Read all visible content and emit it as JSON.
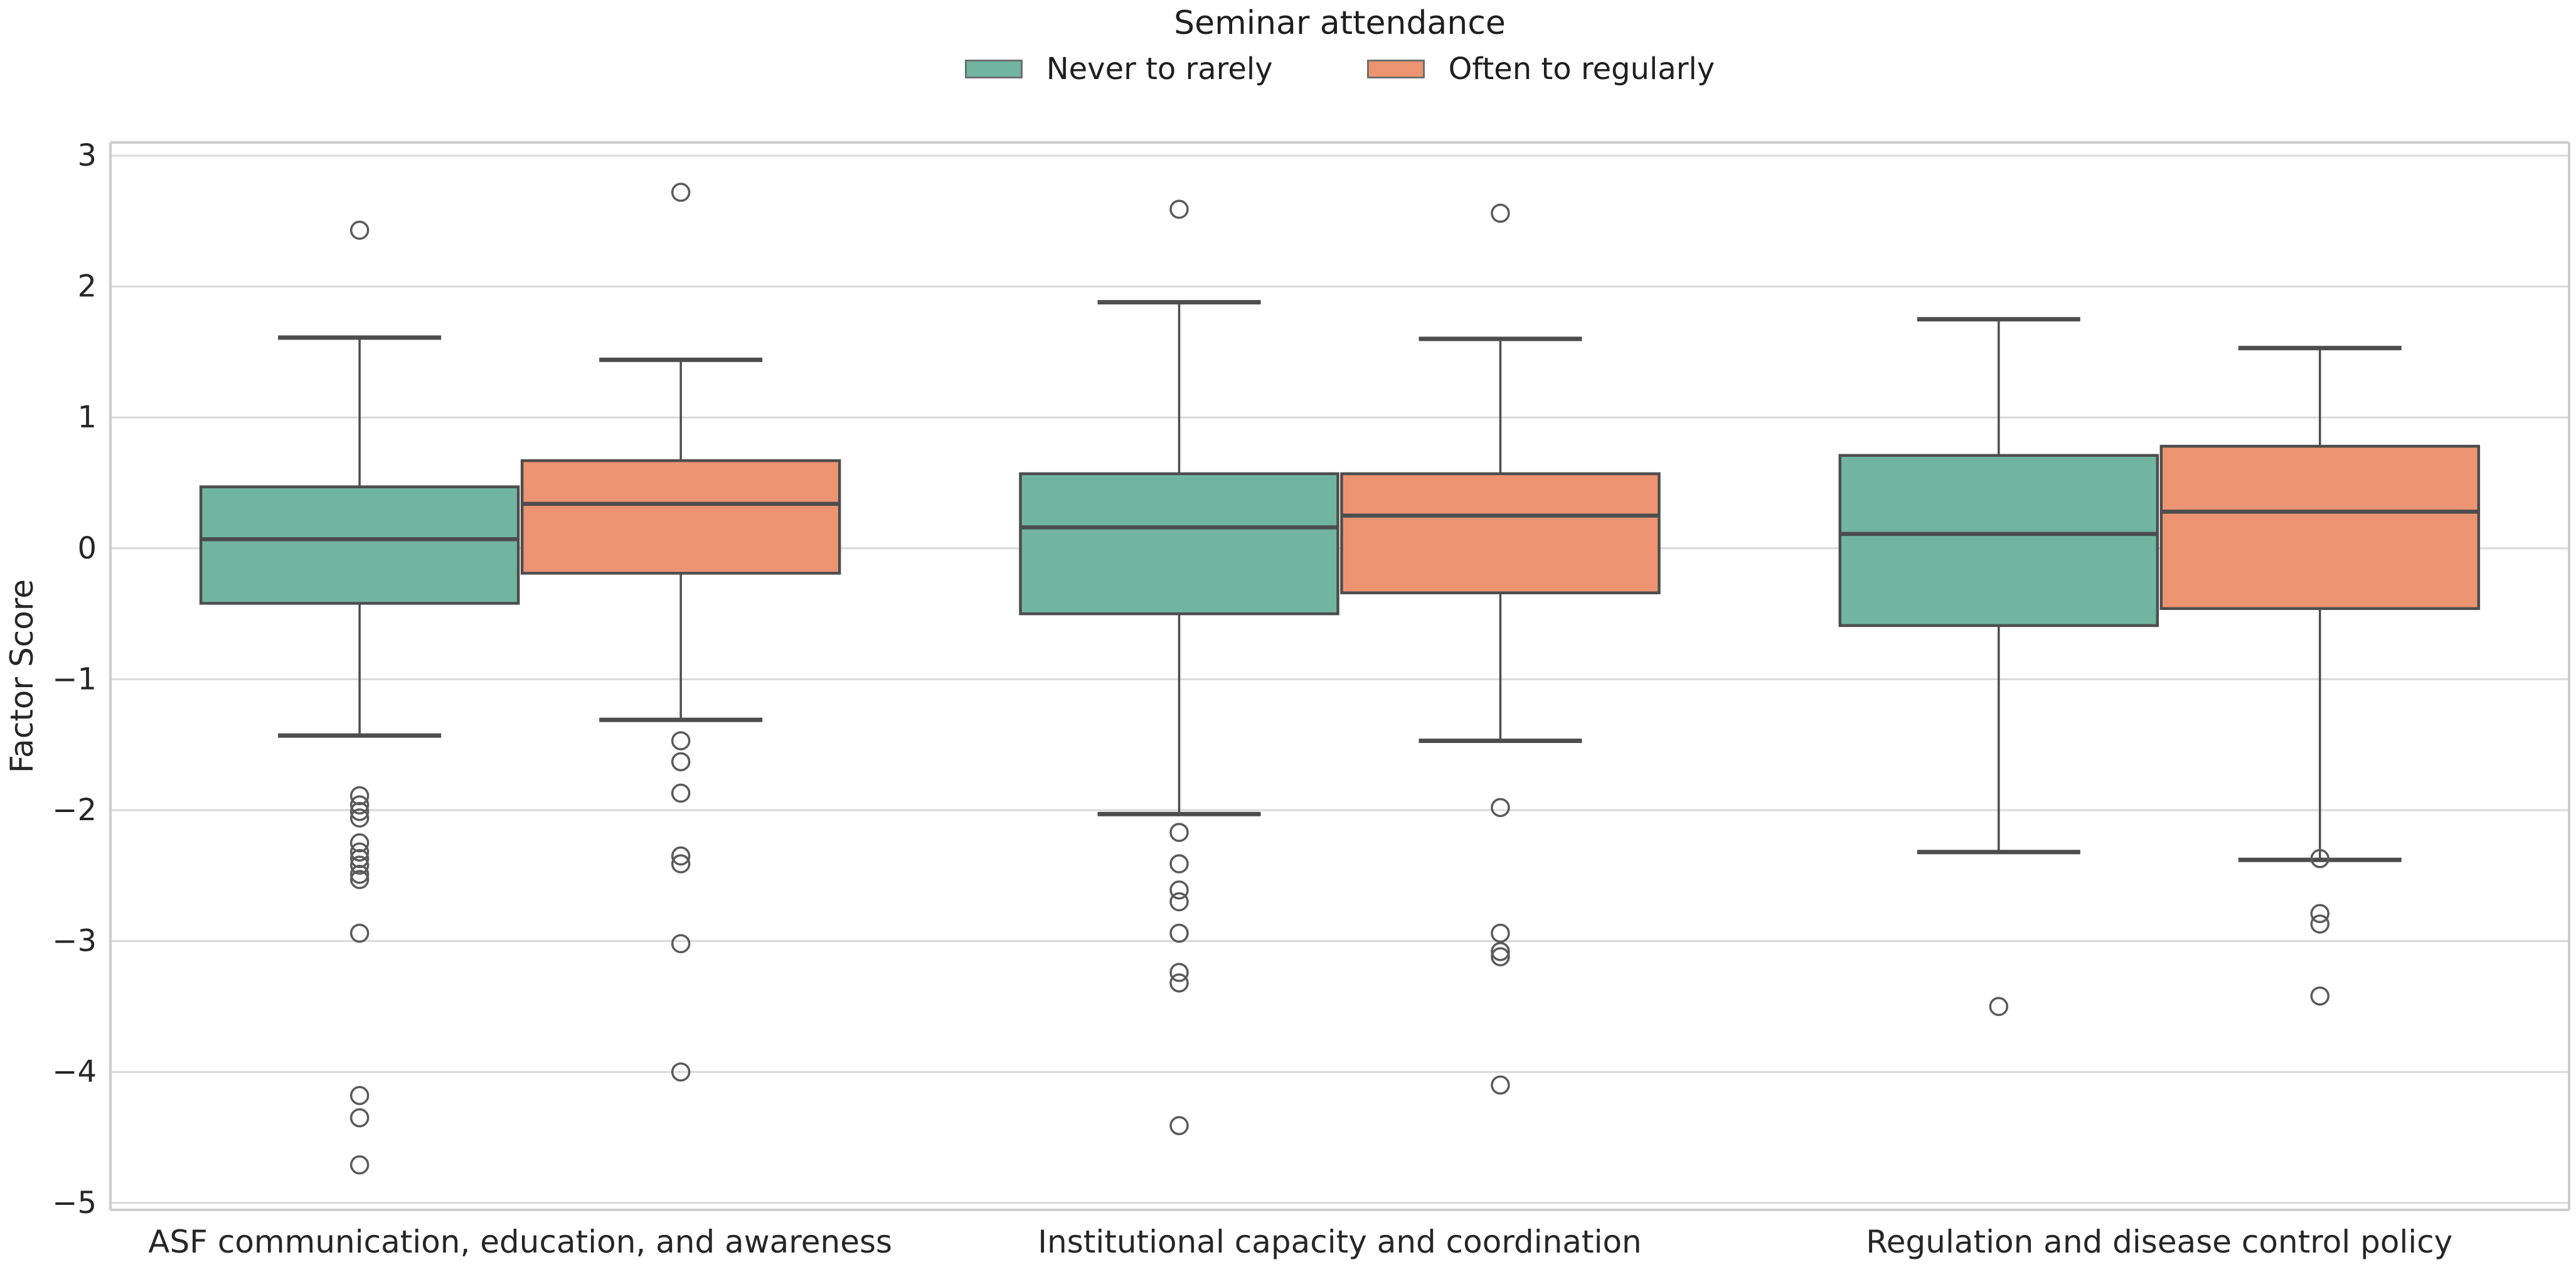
{
  "chart_data": {
    "type": "box",
    "legend_title": "Seminar attendance",
    "ylabel": "Factor Score",
    "xlabel": "",
    "yticks": [
      3,
      2,
      1,
      0,
      -1,
      -2,
      -3,
      -4,
      -5
    ],
    "ylim": [
      -5.06,
      3.1
    ],
    "grid": true,
    "legend_position": "top-center",
    "groups": [
      {
        "name": "Never to rarely",
        "color": "#71b5a1"
      },
      {
        "name": "Often to regularly",
        "color": "#ec9472"
      }
    ],
    "categories": [
      "ASF communication, education, and awareness",
      "Institutional capacity and coordination",
      "Regulation and disease control policy"
    ],
    "boxes": [
      {
        "category": 0,
        "group": 0,
        "whislo": -1.43,
        "q1": -0.42,
        "med": 0.07,
        "q3": 0.47,
        "whishi": 1.61,
        "outliers": [
          2.43,
          -1.89,
          -1.96,
          -2.01,
          -2.06,
          -2.25,
          -2.32,
          -2.37,
          -2.42,
          -2.49,
          -2.53,
          -2.94,
          -4.18,
          -4.35,
          -4.71
        ]
      },
      {
        "category": 0,
        "group": 1,
        "whislo": -1.31,
        "q1": -0.19,
        "med": 0.34,
        "q3": 0.67,
        "whishi": 1.44,
        "outliers": [
          2.72,
          -1.47,
          -1.63,
          -1.87,
          -2.35,
          -2.41,
          -3.02,
          -4.0
        ]
      },
      {
        "category": 1,
        "group": 0,
        "whislo": -2.03,
        "q1": -0.5,
        "med": 0.16,
        "q3": 0.57,
        "whishi": 1.88,
        "outliers": [
          2.59,
          -2.17,
          -2.41,
          -2.61,
          -2.7,
          -2.94,
          -3.24,
          -3.32,
          -4.41
        ]
      },
      {
        "category": 1,
        "group": 1,
        "whislo": -1.47,
        "q1": -0.34,
        "med": 0.25,
        "q3": 0.57,
        "whishi": 1.6,
        "outliers": [
          2.56,
          -1.98,
          -2.94,
          -3.08,
          -3.12,
          -4.1
        ]
      },
      {
        "category": 2,
        "group": 0,
        "whislo": -2.32,
        "q1": -0.59,
        "med": 0.11,
        "q3": 0.71,
        "whishi": 1.75,
        "outliers": [
          -3.5
        ]
      },
      {
        "category": 2,
        "group": 1,
        "whislo": -2.38,
        "q1": -0.46,
        "med": 0.28,
        "q3": 0.78,
        "whishi": 1.53,
        "outliers": [
          -2.37,
          -2.79,
          -2.87,
          -3.42
        ]
      }
    ],
    "colors": {
      "box_edge": "#4d4d4d",
      "median": "#4d4d4d",
      "whisker": "#4d4d4d",
      "outlier": "#5a5a5a",
      "grid": "#d9d9d9",
      "spine": "#cccccc",
      "text": "#262626"
    }
  }
}
